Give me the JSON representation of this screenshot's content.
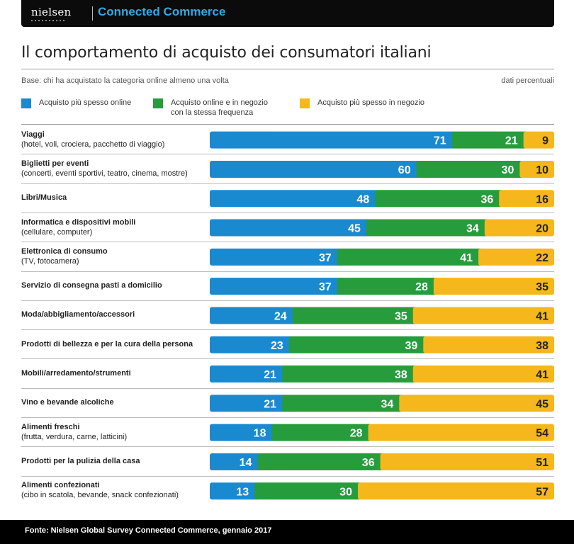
{
  "header": {
    "logo": "nielsen",
    "brand": "Connected Commerce"
  },
  "title": "Il comportamento di acquisto dei consumatori italiani",
  "base": "Base: chi ha acquistato la categoria online almeno una volta",
  "unit": "dati percentuali",
  "colors": {
    "online": "#1a8ad0",
    "both": "#279c3c",
    "store": "#f6b71c"
  },
  "footer": "Fonte: Nielsen Global Survey Connected Commerce, gennaio 2017",
  "chart_data": {
    "type": "bar",
    "stacked": true,
    "orientation": "horizontal",
    "legend_placement": "top",
    "grid": false,
    "xlim": [
      0,
      100
    ],
    "legend": [
      {
        "name": "Acquisto più spesso online",
        "line1": "Acquisto più spesso online",
        "line2": ""
      },
      {
        "name": "Acquisto online e in negozio con la stessa frequenza",
        "line1": "Acquisto online e in negozio",
        "line2": "con la stessa frequenza"
      },
      {
        "name": "Acquisto più spesso in negozio",
        "line1": "Acquisto più spesso in negozio",
        "line2": ""
      }
    ],
    "categories": [
      {
        "name": "Viaggi",
        "sub": "(hotel, voli, crociera, pacchetto di viaggio)"
      },
      {
        "name": "Biglietti per eventi",
        "sub": "(concerti, eventi sportivi, teatro, cinema, mostre)"
      },
      {
        "name": "Libri/Musica",
        "sub": ""
      },
      {
        "name": "Informatica e dispositivi mobili",
        "sub": "(cellulare, computer)"
      },
      {
        "name": "Elettronica di consumo",
        "sub": "(TV, fotocamera)"
      },
      {
        "name": "Servizio di consegna pasti a domicilio",
        "sub": ""
      },
      {
        "name": "Moda/abbigliamento/accessori",
        "sub": ""
      },
      {
        "name": "Prodotti di bellezza e per la cura della persona",
        "sub": ""
      },
      {
        "name": "Mobili/arredamento/strumenti",
        "sub": ""
      },
      {
        "name": "Vino e bevande alcoliche",
        "sub": ""
      },
      {
        "name": "Alimenti freschi",
        "sub": "(frutta, verdura, carne, latticini)"
      },
      {
        "name": "Prodotti per la pulizia della casa",
        "sub": ""
      },
      {
        "name": "Alimenti confezionati",
        "sub": "(cibo in scatola, bevande, snack confezionati)"
      }
    ],
    "series": [
      {
        "name": "Acquisto più spesso online",
        "values": [
          71,
          60,
          48,
          45,
          37,
          37,
          24,
          23,
          21,
          21,
          18,
          14,
          13
        ]
      },
      {
        "name": "Acquisto online e in negozio con la stessa frequenza",
        "values": [
          21,
          30,
          36,
          34,
          41,
          28,
          35,
          39,
          38,
          34,
          28,
          36,
          30
        ]
      },
      {
        "name": "Acquisto più spesso in negozio",
        "values": [
          9,
          10,
          16,
          20,
          22,
          35,
          41,
          38,
          41,
          45,
          54,
          51,
          57
        ]
      }
    ]
  }
}
